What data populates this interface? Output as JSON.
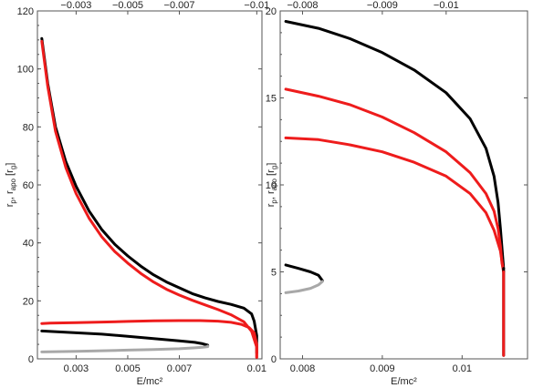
{
  "chart_data": [
    {
      "type": "line",
      "xlabel": "E/mc²",
      "ylabel_main": "r",
      "ylabel_sub_p": "p",
      "ylabel_sep": ", r",
      "ylabel_sub_apo": "apo",
      "ylabel_unit_open": "[r",
      "ylabel_unit_sub": "g",
      "ylabel_unit_close": "]",
      "xlim": [
        0.0015,
        0.0102
      ],
      "ylim": [
        0,
        120
      ],
      "xticks": [
        0.003,
        0.005,
        0.007,
        0.01
      ],
      "xtick_labels": [
        "0.003",
        "0.005",
        "0.007",
        "0.01"
      ],
      "top_tick_values": [
        0.003,
        0.005,
        0.007,
        0.01
      ],
      "top_tick_labels": [
        "−0.003",
        "−0.005",
        "−0.007",
        "−0.01"
      ],
      "yticks": [
        0,
        20,
        40,
        60,
        80,
        100,
        120
      ],
      "ytick_labels": [
        "0",
        "20",
        "40",
        "60",
        "80",
        "100",
        "120"
      ],
      "series": [
        {
          "color": "#000000",
          "x": [
            0.00167,
            0.0019,
            0.0022,
            0.0026,
            0.003,
            0.0035,
            0.004,
            0.0045,
            0.005,
            0.0055,
            0.006,
            0.0065,
            0.007,
            0.0075,
            0.008,
            0.0085,
            0.009,
            0.0095,
            0.0098,
            0.0099,
            0.01,
            0.01
          ],
          "y": [
            110.5,
            95,
            80,
            68,
            59.5,
            51,
            44.5,
            39.5,
            35.5,
            32,
            29,
            26.5,
            24.5,
            22.5,
            21,
            19.8,
            18.8,
            17.5,
            15.5,
            13,
            8,
            2
          ]
        },
        {
          "color": "#ee1c1c",
          "x": [
            0.00167,
            0.0019,
            0.0022,
            0.0026,
            0.003,
            0.0035,
            0.004,
            0.0045,
            0.005,
            0.0055,
            0.006,
            0.0065,
            0.007,
            0.0075,
            0.008,
            0.0085,
            0.009,
            0.0095,
            0.0098,
            0.01,
            0.01
          ],
          "y": [
            109.5,
            94,
            78.5,
            66,
            57,
            48.5,
            42,
            37,
            33,
            29.5,
            26.5,
            24,
            22,
            20.2,
            18.6,
            17,
            15.2,
            12.8,
            9.5,
            4,
            0.5
          ]
        },
        {
          "color": "#ee1c1c",
          "x": [
            0.00167,
            0.002,
            0.003,
            0.004,
            0.005,
            0.006,
            0.007,
            0.0078,
            0.0085,
            0.009,
            0.0094,
            0.0097,
            0.0099,
            0.01,
            0.01
          ],
          "y": [
            12.2,
            12.3,
            12.5,
            12.7,
            12.9,
            13.1,
            13.2,
            13.2,
            13,
            12.6,
            11.9,
            10.8,
            9,
            5,
            0.5
          ]
        },
        {
          "color": "#000000",
          "x": [
            0.00167,
            0.003,
            0.004,
            0.005,
            0.006,
            0.007,
            0.0076,
            0.0079,
            0.0081,
            0.0081
          ],
          "y": [
            9.6,
            9,
            8.5,
            7.8,
            7,
            6.2,
            5.7,
            5.2,
            4.7,
            4.4
          ]
        },
        {
          "color": "#a8a8a8",
          "x": [
            0.00167,
            0.003,
            0.004,
            0.005,
            0.006,
            0.007,
            0.0076,
            0.0079,
            0.0081,
            0.0081
          ],
          "y": [
            2.4,
            2.6,
            2.8,
            3,
            3.2,
            3.5,
            3.8,
            4,
            4.2,
            4.4
          ]
        }
      ]
    },
    {
      "type": "line",
      "xlabel": "E/mc²",
      "ylabel_main": "r",
      "ylabel_sub_p": "p",
      "ylabel_sep": ", r",
      "ylabel_sub_apo": "apo",
      "ylabel_unit_open": "[r",
      "ylabel_unit_sub": "g",
      "ylabel_unit_close": "]",
      "xlim": [
        0.00772,
        0.01082
      ],
      "ylim": [
        0,
        20
      ],
      "xticks": [
        0.008,
        0.009,
        0.01
      ],
      "xtick_labels": [
        "0.008",
        "0.009",
        "0.01"
      ],
      "top_tick_values": [
        0.008,
        0.009,
        0.0098
      ],
      "top_tick_labels": [
        "−0.008",
        "−0.009",
        "−0.01"
      ],
      "yticks": [
        0,
        5,
        10,
        15,
        20
      ],
      "ytick_labels": [
        "0",
        "5",
        "10",
        "15",
        "20"
      ],
      "series": [
        {
          "color": "#000000",
          "x": [
            0.00779,
            0.0082,
            0.0086,
            0.009,
            0.0094,
            0.0098,
            0.0101,
            0.0103,
            0.0104,
            0.01045,
            0.01048,
            0.01052
          ],
          "y": [
            19.4,
            19,
            18.4,
            17.6,
            16.6,
            15.3,
            13.8,
            12.1,
            10.5,
            9,
            7.5,
            5.2
          ]
        },
        {
          "color": "#ee1c1c",
          "x": [
            0.00779,
            0.0082,
            0.0086,
            0.009,
            0.0094,
            0.0098,
            0.0101,
            0.0103,
            0.0104,
            0.01045,
            0.01048,
            0.0105,
            0.01052
          ],
          "y": [
            15.5,
            15.1,
            14.6,
            13.9,
            13,
            11.9,
            10.7,
            9.5,
            8.5,
            7.5,
            6.5,
            5.5,
            5
          ]
        },
        {
          "color": "#ee1c1c",
          "x": [
            0.00779,
            0.0082,
            0.0086,
            0.009,
            0.0094,
            0.0098,
            0.0101,
            0.0103,
            0.0104,
            0.01048,
            0.0105,
            0.01052
          ],
          "y": [
            12.7,
            12.6,
            12.3,
            11.9,
            11.3,
            10.5,
            9.5,
            8.4,
            7.4,
            6.2,
            5.6,
            5
          ]
        },
        {
          "color": "#000000",
          "x": [
            0.01052,
            0.01052,
            0.01052,
            0.01052,
            0.01052
          ],
          "y": [
            5.2,
            3.7,
            2.4,
            1.2,
            0.2
          ]
        },
        {
          "color": "#ee1c1c",
          "x": [
            0.01052,
            0.01052,
            0.01052,
            0.01052
          ],
          "y": [
            5,
            3.5,
            2,
            0.2
          ]
        },
        {
          "color": "#000000",
          "x": [
            0.00779,
            0.00795,
            0.0081,
            0.0082,
            0.00825
          ],
          "y": [
            5.4,
            5.2,
            5,
            4.8,
            4.5
          ]
        },
        {
          "color": "#a8a8a8",
          "x": [
            0.00779,
            0.00795,
            0.0081,
            0.0082,
            0.00825
          ],
          "y": [
            3.8,
            3.9,
            4.05,
            4.25,
            4.45
          ]
        }
      ]
    }
  ]
}
